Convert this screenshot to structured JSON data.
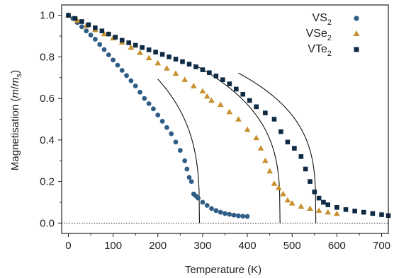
{
  "chart_data": {
    "type": "scatter",
    "xlabel": "Temperature (K)",
    "ylabel_parts": {
      "main": "Magnetisation (",
      "italic_m": "m",
      "slash": "/",
      "italic_ms": "m",
      "sub": "s",
      "close": ")"
    },
    "xlim": [
      -15,
      715
    ],
    "ylim": [
      -0.05,
      1.05
    ],
    "xticks": [
      0,
      100,
      200,
      300,
      400,
      500,
      600,
      700
    ],
    "xtick_labels": [
      "0",
      "100",
      "200",
      "300",
      "400",
      "500",
      "600",
      "700"
    ],
    "yticks": [
      0.0,
      0.2,
      0.4,
      0.6,
      0.8,
      1.0
    ],
    "ytick_labels": [
      "0.0",
      "0.2",
      "0.4",
      "0.6",
      "0.8",
      "1.0"
    ],
    "grid": false,
    "legend_position": "top-right",
    "reference_line": {
      "y": 0.0,
      "style": "dotted"
    },
    "series": [
      {
        "name_main": "VS",
        "name_sub": "2",
        "marker": "circle",
        "color": "#2f5d86",
        "points": [
          [
            0,
            1.0
          ],
          [
            10,
            0.985
          ],
          [
            20,
            0.965
          ],
          [
            30,
            0.945
          ],
          [
            40,
            0.925
          ],
          [
            50,
            0.905
          ],
          [
            60,
            0.885
          ],
          [
            70,
            0.86
          ],
          [
            80,
            0.835
          ],
          [
            90,
            0.81
          ],
          [
            100,
            0.785
          ],
          [
            110,
            0.76
          ],
          [
            120,
            0.735
          ],
          [
            130,
            0.71
          ],
          [
            140,
            0.685
          ],
          [
            150,
            0.66
          ],
          [
            160,
            0.63
          ],
          [
            170,
            0.6
          ],
          [
            180,
            0.575
          ],
          [
            190,
            0.55
          ],
          [
            200,
            0.52
          ],
          [
            210,
            0.49
          ],
          [
            220,
            0.46
          ],
          [
            230,
            0.43
          ],
          [
            240,
            0.39
          ],
          [
            250,
            0.35
          ],
          [
            260,
            0.3
          ],
          [
            265,
            0.26
          ],
          [
            270,
            0.22
          ],
          [
            275,
            0.2
          ],
          [
            280,
            0.14
          ],
          [
            285,
            0.13
          ],
          [
            290,
            0.12
          ],
          [
            300,
            0.1
          ],
          [
            310,
            0.085
          ],
          [
            320,
            0.07
          ],
          [
            330,
            0.06
          ],
          [
            340,
            0.052
          ],
          [
            350,
            0.046
          ],
          [
            360,
            0.042
          ],
          [
            370,
            0.038
          ],
          [
            380,
            0.035
          ],
          [
            390,
            0.033
          ],
          [
            400,
            0.032
          ]
        ],
        "fit": {
          "tc": 293,
          "beta": 0.32,
          "start_x": 200
        }
      },
      {
        "name_main": "VSe",
        "name_sub": "2",
        "marker": "triangle",
        "color": "#c8902e",
        "points": [
          [
            0,
            1.0
          ],
          [
            20,
            0.975
          ],
          [
            40,
            0.95
          ],
          [
            60,
            0.93
          ],
          [
            80,
            0.91
          ],
          [
            100,
            0.89
          ],
          [
            120,
            0.87
          ],
          [
            140,
            0.845
          ],
          [
            160,
            0.82
          ],
          [
            180,
            0.795
          ],
          [
            200,
            0.77
          ],
          [
            220,
            0.745
          ],
          [
            240,
            0.72
          ],
          [
            260,
            0.69
          ],
          [
            280,
            0.66
          ],
          [
            300,
            0.635
          ],
          [
            310,
            0.61
          ],
          [
            320,
            0.59
          ],
          [
            340,
            0.57
          ],
          [
            360,
            0.535
          ],
          [
            380,
            0.5
          ],
          [
            400,
            0.45
          ],
          [
            420,
            0.41
          ],
          [
            430,
            0.36
          ],
          [
            440,
            0.3
          ],
          [
            450,
            0.25
          ],
          [
            460,
            0.19
          ],
          [
            470,
            0.17
          ],
          [
            480,
            0.14
          ],
          [
            490,
            0.11
          ],
          [
            500,
            0.095
          ],
          [
            520,
            0.08
          ],
          [
            540,
            0.07
          ],
          [
            560,
            0.06
          ],
          [
            580,
            0.052
          ],
          [
            600,
            0.045
          ]
        ],
        "fit": {
          "tc": 473,
          "beta": 0.3,
          "start_x": 280
        }
      },
      {
        "name_main": "VTe",
        "name_sub": "2",
        "marker": "square",
        "color": "#0f2a44",
        "points": [
          [
            0,
            1.0
          ],
          [
            15,
            0.985
          ],
          [
            30,
            0.97
          ],
          [
            45,
            0.955
          ],
          [
            60,
            0.94
          ],
          [
            75,
            0.925
          ],
          [
            90,
            0.91
          ],
          [
            105,
            0.895
          ],
          [
            120,
            0.88
          ],
          [
            135,
            0.868
          ],
          [
            150,
            0.856
          ],
          [
            165,
            0.845
          ],
          [
            180,
            0.834
          ],
          [
            195,
            0.823
          ],
          [
            210,
            0.812
          ],
          [
            225,
            0.8
          ],
          [
            240,
            0.789
          ],
          [
            255,
            0.777
          ],
          [
            270,
            0.765
          ],
          [
            285,
            0.752
          ],
          [
            300,
            0.738
          ],
          [
            315,
            0.724
          ],
          [
            330,
            0.708
          ],
          [
            345,
            0.69
          ],
          [
            360,
            0.67
          ],
          [
            375,
            0.645
          ],
          [
            390,
            0.62
          ],
          [
            405,
            0.59
          ],
          [
            420,
            0.56
          ],
          [
            440,
            0.53
          ],
          [
            460,
            0.5
          ],
          [
            475,
            0.44
          ],
          [
            490,
            0.39
          ],
          [
            505,
            0.36
          ],
          [
            520,
            0.32
          ],
          [
            530,
            0.26
          ],
          [
            540,
            0.2
          ],
          [
            550,
            0.15
          ],
          [
            560,
            0.12
          ],
          [
            570,
            0.1
          ],
          [
            580,
            0.088
          ],
          [
            600,
            0.075
          ],
          [
            620,
            0.065
          ],
          [
            640,
            0.058
          ],
          [
            660,
            0.052
          ],
          [
            680,
            0.046
          ],
          [
            700,
            0.04
          ],
          [
            715,
            0.036
          ]
        ],
        "fit": {
          "tc": 553,
          "beta": 0.28,
          "start_x": 380
        }
      }
    ]
  }
}
